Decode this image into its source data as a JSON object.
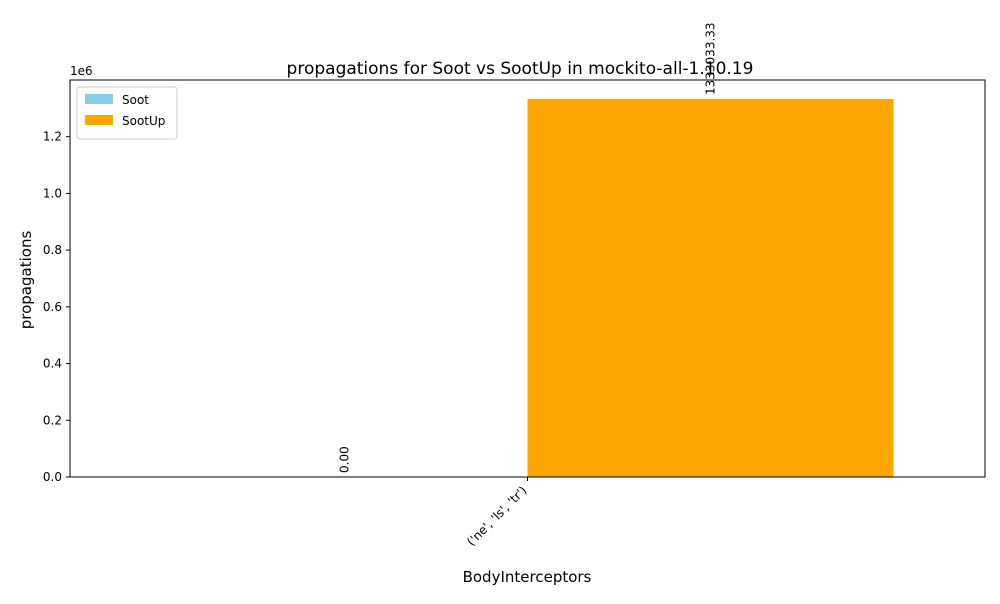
{
  "chart_data": {
    "type": "bar",
    "title": "propagations for Soot vs SootUp in mockito-all-1.10.19",
    "xlabel": "BodyInterceptors",
    "ylabel": "propagations",
    "y_offset_text": "1e6",
    "categories": [
      "('ne', 'ls', 'tr')"
    ],
    "series": [
      {
        "name": "Soot",
        "color": "#87ceeb",
        "values": [
          0
        ],
        "labels": [
          "0.00"
        ]
      },
      {
        "name": "SootUp",
        "color": "#ffa500",
        "values": [
          1333033.33
        ],
        "labels": [
          "1333033.33"
        ]
      }
    ],
    "ylim": [
      0,
      1400000
    ],
    "yticks": [
      0,
      200000,
      400000,
      600000,
      800000,
      1000000,
      1200000
    ],
    "ytick_labels": [
      "0.0",
      "0.2",
      "0.4",
      "0.6",
      "0.8",
      "1.0",
      "1.2"
    ],
    "legend_position": "top-left",
    "grid": false
  }
}
